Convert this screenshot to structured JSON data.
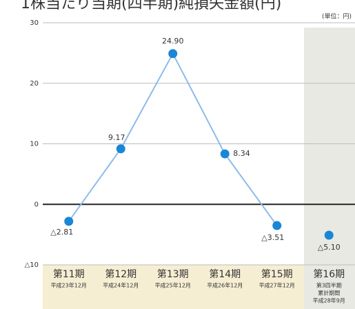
{
  "chart_data": {
    "type": "line",
    "title": "1株当たり当期(四半期)純損失金額(円)",
    "unit": "(単位：円)",
    "categories": [
      "第11期",
      "第12期",
      "第13期",
      "第14期",
      "第15期",
      "第16期"
    ],
    "category_notes": [
      [
        "平成23年12月"
      ],
      [
        "平成24年12月"
      ],
      [
        "平成25年12月"
      ],
      [
        "平成26年12月"
      ],
      [
        "平成27年12月"
      ],
      [
        "第3四半期",
        "累計期間",
        "平成28年9月"
      ]
    ],
    "series": [
      {
        "color": "#1a86d6",
        "line_color": "#8cbbe9",
        "line": true,
        "values": [
          -2.81,
          9.17,
          24.9,
          8.34,
          -3.51,
          null
        ],
        "value_labels": [
          "△2.81",
          "9.17",
          "24.90",
          "8.34",
          "△3.51",
          null
        ]
      },
      {
        "color": "#1a86d6",
        "line": false,
        "values": [
          null,
          null,
          null,
          null,
          null,
          -5.1
        ],
        "value_labels": [
          null,
          null,
          null,
          null,
          null,
          "△5.10"
        ]
      }
    ],
    "ylim": [
      -10,
      30
    ],
    "yticks": [
      {
        "value": -10,
        "label": "△10"
      },
      0,
      10,
      20,
      30
    ],
    "grid": true
  }
}
